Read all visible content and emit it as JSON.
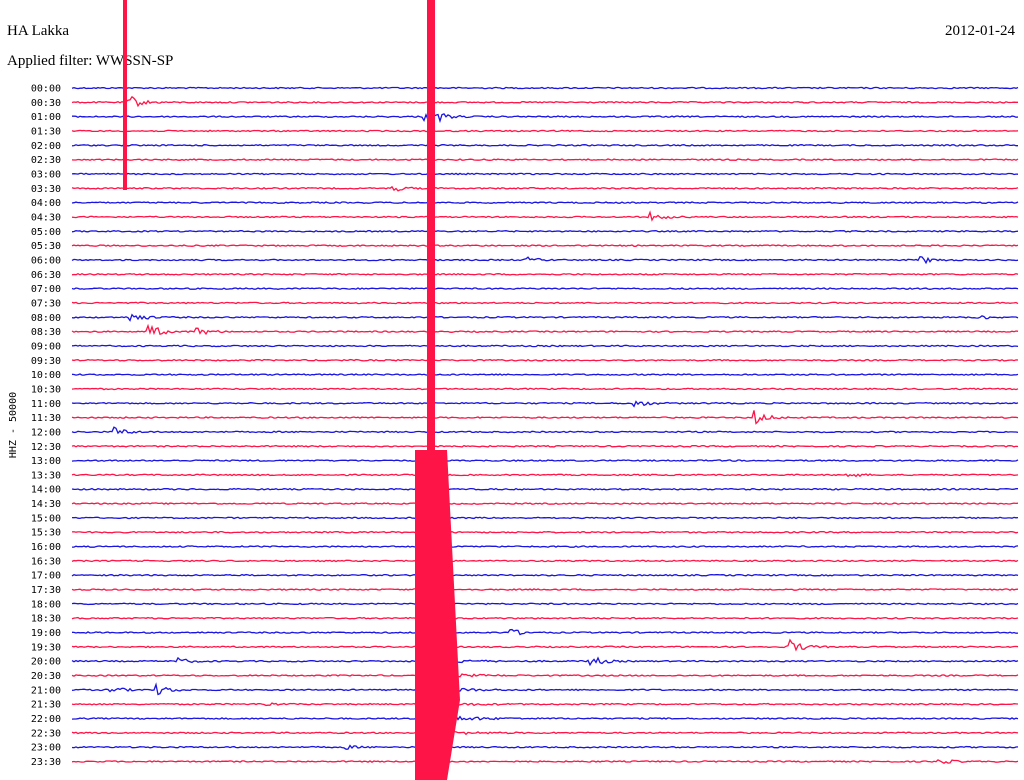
{
  "header": {
    "station": "HA Lakka",
    "date": "2012-01-24",
    "filter": "Applied filter: WWSSN-SP"
  },
  "channel_label": "HHZ - 50000",
  "rows": [
    "00:00",
    "00:30",
    "01:00",
    "01:30",
    "02:00",
    "02:30",
    "03:00",
    "03:30",
    "04:00",
    "04:30",
    "05:00",
    "05:30",
    "06:00",
    "06:30",
    "07:00",
    "07:30",
    "08:00",
    "08:30",
    "09:00",
    "09:30",
    "10:00",
    "10:30",
    "11:00",
    "11:30",
    "12:00",
    "12:30",
    "13:00",
    "13:30",
    "14:00",
    "14:30",
    "15:00",
    "15:30",
    "16:00",
    "16:30",
    "17:00",
    "17:30",
    "18:00",
    "18:30",
    "19:00",
    "19:30",
    "20:00",
    "20:30",
    "21:00",
    "21:30",
    "22:00",
    "22:30",
    "23:00",
    "23:30"
  ]
}
